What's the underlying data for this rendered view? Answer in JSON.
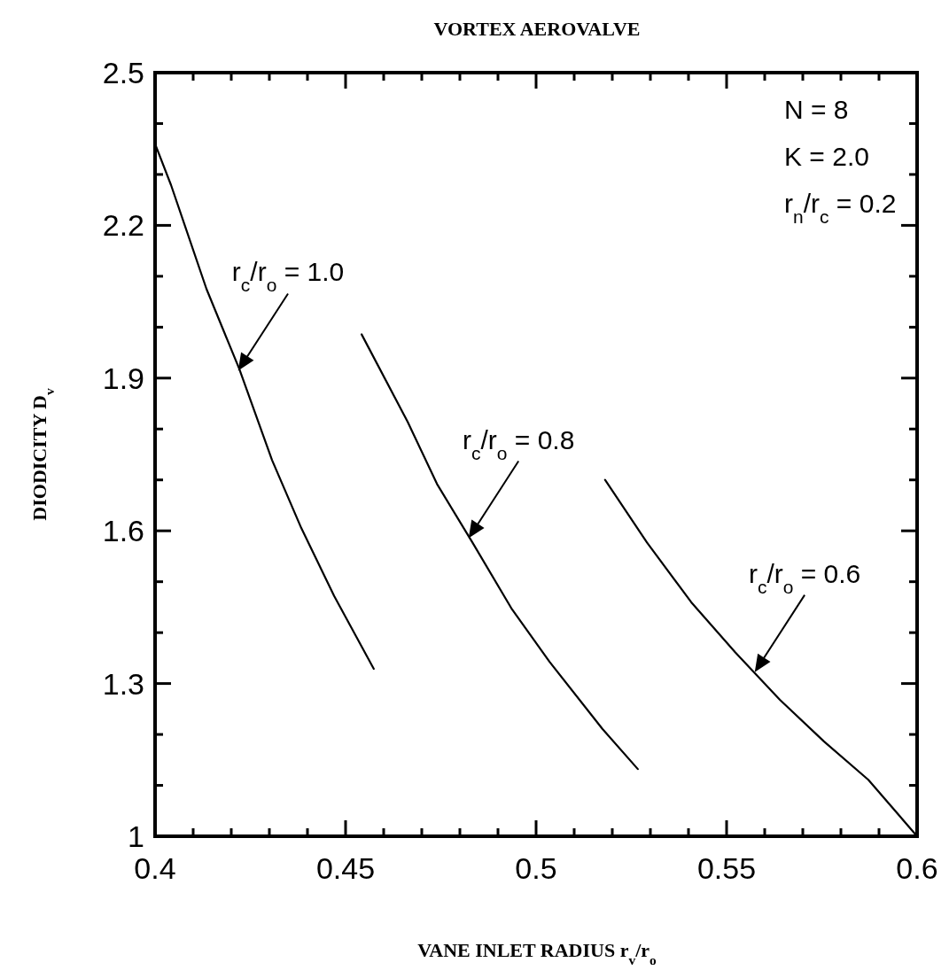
{
  "chart_data": {
    "type": "line",
    "title": "VORTEX AEROVALVE",
    "xlabel": "VANE INLET RADIUS r$_{v}$/r$_{o}$",
    "ylabel": "DIODICITY D$_{v}$",
    "xlim": [
      0.4,
      0.6
    ],
    "ylim": [
      1,
      2.5
    ],
    "xticks": [
      0.4,
      {
        "value": 0.41,
        "label": null
      },
      {
        "value": 0.42,
        "label": null
      },
      {
        "value": 0.43,
        "label": null
      },
      {
        "value": 0.44,
        "label": null
      },
      0.45,
      {
        "value": 0.46,
        "label": null
      },
      {
        "value": 0.47,
        "label": null
      },
      {
        "value": 0.48,
        "label": null
      },
      {
        "value": 0.49,
        "label": null
      },
      0.5,
      {
        "value": 0.51,
        "label": null
      },
      {
        "value": 0.52,
        "label": null
      },
      {
        "value": 0.53,
        "label": null
      },
      {
        "value": 0.54,
        "label": null
      },
      0.55,
      {
        "value": 0.56,
        "label": null
      },
      {
        "value": 0.57,
        "label": null
      },
      {
        "value": 0.58,
        "label": null
      },
      {
        "value": 0.59,
        "label": null
      },
      0.6
    ],
    "yticks": [
      1,
      {
        "value": 1.1,
        "label": null
      },
      {
        "value": 1.2,
        "label": null
      },
      1.3,
      {
        "value": 1.4,
        "label": null
      },
      {
        "value": 1.5,
        "label": null
      },
      1.6,
      {
        "value": 1.7,
        "label": null
      },
      {
        "value": 1.8,
        "label": null
      },
      1.9,
      {
        "value": 2.0,
        "label": null
      },
      {
        "value": 2.1,
        "label": null
      },
      2.2,
      {
        "value": 2.3,
        "label": null
      },
      {
        "value": 2.4,
        "label": null
      },
      2.5
    ],
    "series": [
      {
        "color": "#000000",
        "x": [
          0.4,
          0.4042,
          0.4135,
          0.4221,
          0.4307,
          0.4384,
          0.447,
          0.4574
        ],
        "values": [
          2.36,
          2.279,
          2.075,
          1.918,
          1.739,
          1.605,
          1.472,
          1.329
        ]
      },
      {
        "color": "#000000",
        "x": [
          0.4542,
          0.4663,
          0.474,
          0.4833,
          0.4935,
          0.5035,
          0.5174,
          0.5267
        ],
        "values": [
          1.986,
          1.814,
          1.692,
          1.577,
          1.448,
          1.343,
          1.211,
          1.132
        ]
      },
      {
        "color": "#000000",
        "x": [
          0.5181,
          0.5291,
          0.5407,
          0.5523,
          0.564,
          0.5756,
          0.5872,
          0.6
        ],
        "values": [
          1.7,
          1.577,
          1.46,
          1.361,
          1.268,
          1.186,
          1.111,
          1.0
        ]
      }
    ],
    "annotations": [
      "N = 8",
      "K = 2.0",
      "r$_{n}$/r$_{c}$ = 0.2",
      {
        "text": "r$_{c}$/r$_{o}$ = 1.0",
        "x": 0.4221,
        "y": 1.918
      },
      {
        "text": "r$_{c}$/r$_{o}$ = 0.8",
        "x": 0.4826,
        "y": 1.589
      },
      {
        "text": "r$_{c}$/r$_{o}$ = 0.6",
        "x": 0.5577,
        "y": 1.326
      }
    ]
  }
}
